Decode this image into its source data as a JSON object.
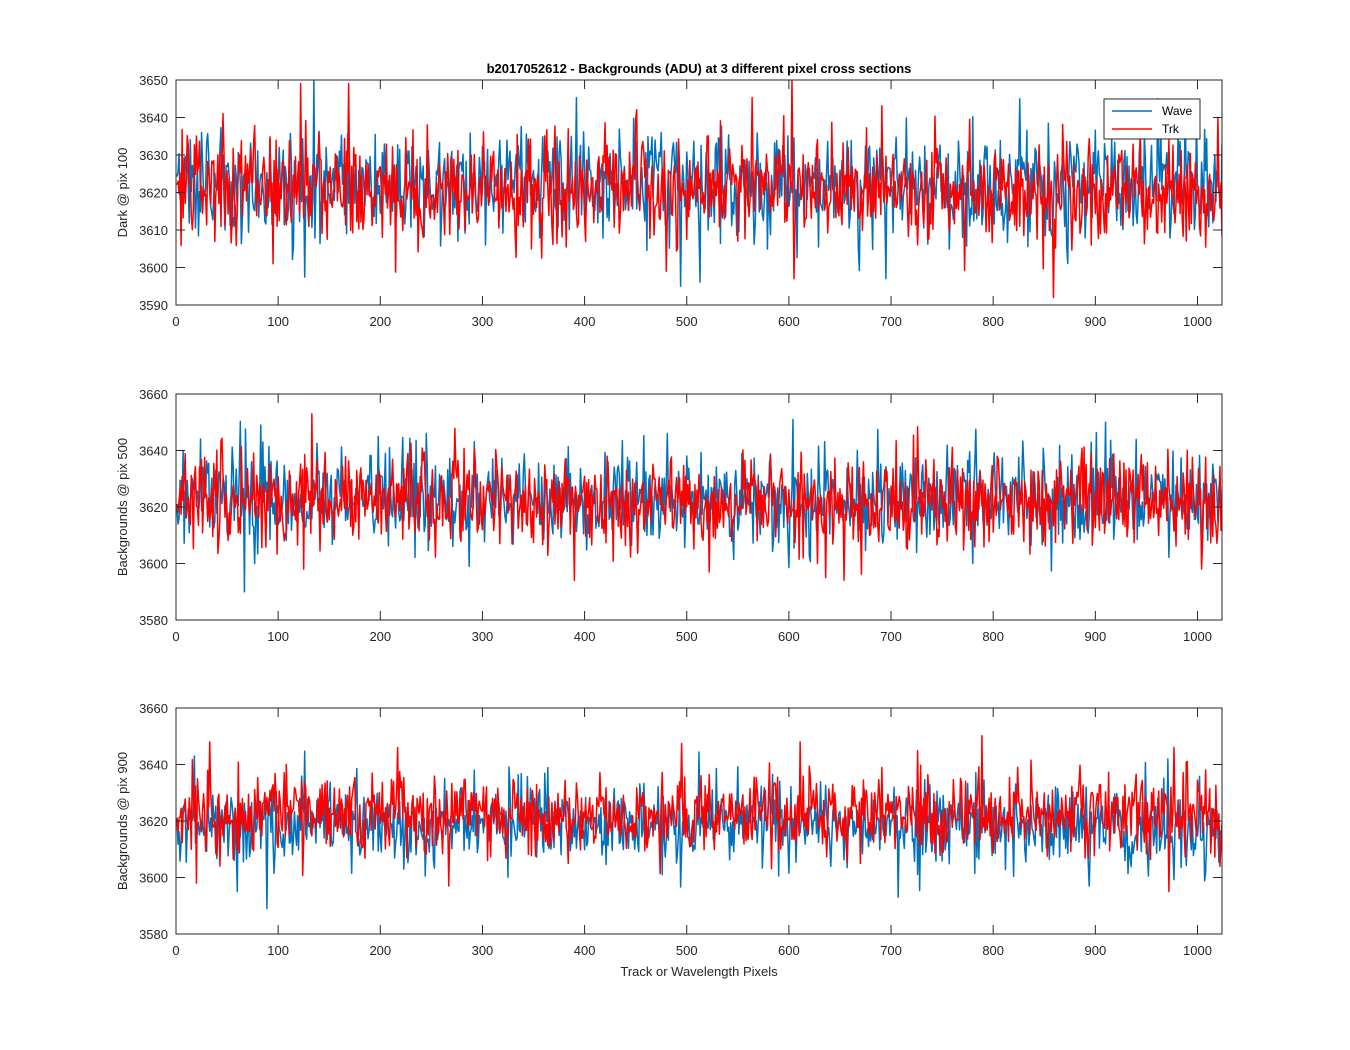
{
  "chart_data": [
    {
      "type": "line",
      "title": "b2017052612 - Backgrounds (ADU) at 3 different pixel cross sections",
      "xlabel": "",
      "ylabel": "Dark @ pix 100",
      "xlim": [
        0,
        1024
      ],
      "ylim": [
        3590,
        3650
      ],
      "xticks": [
        0,
        100,
        200,
        300,
        400,
        500,
        600,
        700,
        800,
        900,
        1000
      ],
      "yticks": [
        3590,
        3600,
        3610,
        3620,
        3630,
        3640,
        3650
      ],
      "grid": false,
      "legend": "top-right",
      "series": [
        {
          "name": "Wave",
          "color": "#0072BD",
          "n_points": 1024,
          "mean": 3622,
          "spread": 7,
          "extremes": [
            [
              134,
              3650
            ],
            [
              493,
              3595
            ],
            [
              694,
              3597
            ],
            [
              825,
              3645
            ],
            [
              960,
              3645
            ]
          ]
        },
        {
          "name": "Trk",
          "color": "#FF0000",
          "n_points": 1024,
          "mean": 3621,
          "spread": 7,
          "extremes": [
            [
              121,
              3649
            ],
            [
              168,
              3649
            ],
            [
              94,
              3601
            ],
            [
              604,
              3597
            ],
            [
              858,
              3592
            ],
            [
              1019,
              3640
            ]
          ]
        }
      ]
    },
    {
      "type": "line",
      "title": "",
      "xlabel": "",
      "ylabel": "Backgrounds @ pix 500",
      "xlim": [
        0,
        1024
      ],
      "ylim": [
        3580,
        3660
      ],
      "xticks": [
        0,
        100,
        200,
        300,
        400,
        500,
        600,
        700,
        800,
        900,
        1000
      ],
      "yticks": [
        3580,
        3600,
        3620,
        3640,
        3660
      ],
      "grid": false,
      "series": [
        {
          "name": "Wave",
          "color": "#0072BD",
          "n_points": 1024,
          "mean": 3623,
          "spread": 8,
          "extremes": [
            [
              82,
              3649
            ],
            [
              197,
              3645
            ],
            [
              603,
              3651
            ],
            [
              909,
              3650
            ],
            [
              76,
              3600
            ],
            [
              286,
              3599
            ]
          ]
        },
        {
          "name": "Trk",
          "color": "#FF0000",
          "n_points": 1024,
          "mean": 3622,
          "spread": 8,
          "extremes": [
            [
              132,
              3653
            ],
            [
              124,
              3598
            ],
            [
              521,
              3597
            ],
            [
              635,
              3595
            ],
            [
              1003,
              3598
            ]
          ]
        }
      ]
    },
    {
      "type": "line",
      "title": "",
      "xlabel": "Track or Wavelength Pixels",
      "ylabel": "Backgrounds @ pix 900",
      "xlim": [
        0,
        1024
      ],
      "ylim": [
        3580,
        3660
      ],
      "xticks": [
        0,
        100,
        200,
        300,
        400,
        500,
        600,
        700,
        800,
        900,
        1000
      ],
      "yticks": [
        3580,
        3600,
        3620,
        3640,
        3660
      ],
      "grid": false,
      "series": [
        {
          "name": "Wave",
          "color": "#0072BD",
          "n_points": 1024,
          "mean": 3619,
          "spread": 7,
          "extremes": [
            [
              88,
              3589
            ],
            [
              59,
              3595
            ],
            [
              706,
              3593
            ],
            [
              893,
              3597
            ]
          ]
        },
        {
          "name": "Trk",
          "color": "#FF0000",
          "n_points": 1024,
          "mean": 3623,
          "spread": 7,
          "extremes": [
            [
              32,
              3648
            ],
            [
              216,
              3646
            ],
            [
              610,
              3648
            ],
            [
              976,
              3646
            ],
            [
              19,
              3598
            ],
            [
              971,
              3595
            ]
          ]
        }
      ]
    }
  ]
}
